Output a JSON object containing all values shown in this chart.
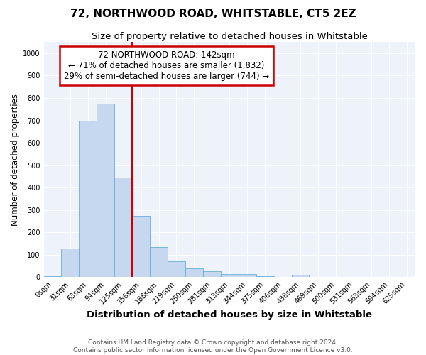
{
  "title": "72, NORTHWOOD ROAD, WHITSTABLE, CT5 2EZ",
  "subtitle": "Size of property relative to detached houses in Whitstable",
  "xlabel": "Distribution of detached houses by size in Whitstable",
  "ylabel": "Number of detached properties",
  "bar_labels": [
    "0sqm",
    "31sqm",
    "63sqm",
    "94sqm",
    "125sqm",
    "156sqm",
    "188sqm",
    "219sqm",
    "250sqm",
    "281sqm",
    "313sqm",
    "344sqm",
    "375sqm",
    "406sqm",
    "438sqm",
    "469sqm",
    "500sqm",
    "531sqm",
    "563sqm",
    "594sqm",
    "625sqm"
  ],
  "bar_values": [
    5,
    128,
    700,
    775,
    445,
    275,
    133,
    70,
    38,
    25,
    13,
    12,
    5,
    0,
    10,
    0,
    0,
    0,
    0,
    0,
    0
  ],
  "bar_color": "#c5d8f0",
  "bar_edge_color": "#6aaed6",
  "vline_x": 4.5,
  "vline_color": "#cc0000",
  "annotation_text": "72 NORTHWOOD ROAD: 142sqm\n← 71% of detached houses are smaller (1,832)\n29% of semi-detached houses are larger (744) →",
  "annotation_box_color": "#ffffff",
  "annotation_box_edge": "#cc0000",
  "ylim": [
    0,
    1050
  ],
  "yticks": [
    0,
    100,
    200,
    300,
    400,
    500,
    600,
    700,
    800,
    900,
    1000
  ],
  "footer_line1": "Contains HM Land Registry data © Crown copyright and database right 2024.",
  "footer_line2": "Contains public sector information licensed under the Open Government Licence v3.0.",
  "fig_bg_color": "#ffffff",
  "ax_bg_color": "#eef2fb",
  "grid_color": "#ffffff",
  "title_fontsize": 11,
  "subtitle_fontsize": 9.5,
  "xlabel_fontsize": 9.5,
  "ylabel_fontsize": 8.5,
  "tick_fontsize": 7,
  "footer_fontsize": 6.5,
  "annot_fontsize": 8.5
}
